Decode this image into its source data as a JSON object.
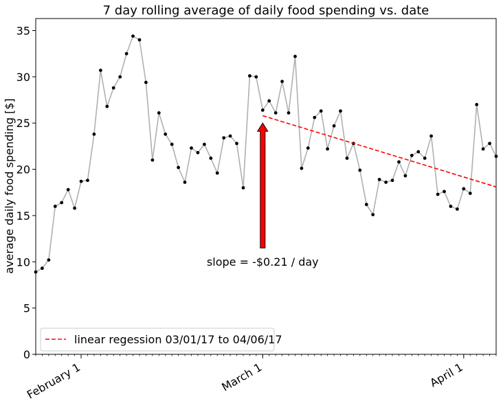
{
  "chart_data": {
    "type": "line",
    "title": "7 day rolling average of daily food spending vs. date",
    "ylabel": "average daily food spending [$]",
    "xlabel": "",
    "ylim": [
      0,
      36.3
    ],
    "xlim": [
      "2017-01-25",
      "2017-04-06"
    ],
    "y_ticks": [
      0,
      5,
      10,
      15,
      20,
      25,
      30,
      35
    ],
    "x_ticks": [
      {
        "date": "2017-02-01",
        "label": "February 1"
      },
      {
        "date": "2017-03-01",
        "label": "March 1"
      },
      {
        "date": "2017-04-01",
        "label": "April 1"
      }
    ],
    "grid": false,
    "legend_position": "bottom-left",
    "series": [
      {
        "color": "#b0b0b0",
        "marker_color": "#000000",
        "start_date": "2017-01-25",
        "values": [
          8.9,
          9.3,
          10.2,
          16.0,
          16.4,
          17.8,
          15.8,
          18.7,
          18.8,
          23.8,
          30.7,
          26.8,
          28.8,
          30.0,
          32.5,
          34.4,
          34.0,
          29.4,
          21.0,
          26.1,
          23.8,
          22.7,
          20.2,
          18.6,
          22.3,
          21.8,
          22.7,
          21.2,
          19.6,
          23.4,
          23.6,
          22.8,
          18.0,
          30.1,
          30.0,
          26.4,
          27.4,
          26.1,
          29.5,
          26.1,
          32.2,
          20.1,
          22.3,
          25.6,
          26.3,
          22.2,
          24.7,
          26.3,
          21.2,
          22.8,
          19.9,
          16.2,
          15.1,
          18.9,
          18.6,
          18.8,
          20.8,
          19.3,
          21.5,
          21.9,
          21.2,
          23.6,
          17.3,
          17.6,
          16.0,
          15.7,
          17.9,
          17.4,
          27.0,
          22.2,
          22.8,
          21.4
        ]
      },
      {
        "name": "linear regession 03/01/17 to 04/06/17",
        "color": "#ff0000",
        "dashed": true,
        "x": [
          "2017-03-01",
          "2017-04-06"
        ],
        "y": [
          25.8,
          18.1
        ]
      }
    ],
    "annotations": [
      {
        "text": "slope = -$0.21 / day",
        "arrow_from": {
          "x": "2017-03-01",
          "y": 11.5
        },
        "arrow_to": {
          "x": "2017-03-01",
          "y": 25.0
        },
        "arrow_color": "#ff0000"
      }
    ]
  }
}
